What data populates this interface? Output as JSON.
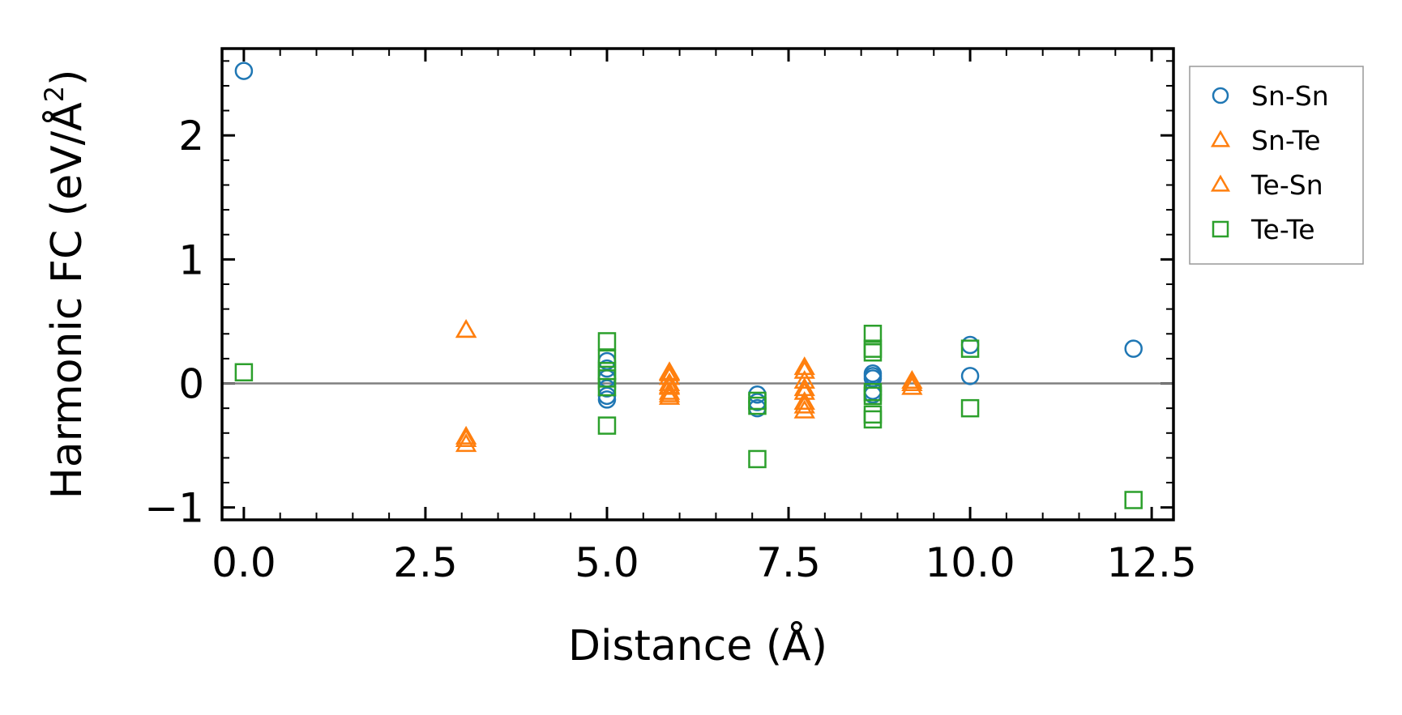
{
  "chart_data": {
    "type": "scatter",
    "title": "",
    "xlabel": "Distance (Å)",
    "ylabel_main": "Harmonic FC (eV/Å",
    "ylabel_sup": "2",
    "ylabel_end": ")",
    "xlim": [
      -0.3,
      12.8
    ],
    "ylim": [
      -1.1,
      2.7
    ],
    "xticks": [
      0.0,
      2.5,
      5.0,
      7.5,
      10.0,
      12.5
    ],
    "xtick_labels": [
      "0.0",
      "2.5",
      "5.0",
      "7.5",
      "10.0",
      "12.5"
    ],
    "xminor_step": 0.5,
    "yticks": [
      -1,
      0,
      1,
      2
    ],
    "ytick_labels": [
      "−1",
      "0",
      "1",
      "2"
    ],
    "yminor_step": 0.2,
    "zero_line": 0,
    "legend_position": "outside-top-right",
    "series": [
      {
        "name": "Sn-Sn",
        "marker": "circle",
        "color": "#1f77b4",
        "points": [
          [
            0.0,
            2.52
          ],
          [
            5.0,
            0.18
          ],
          [
            5.0,
            0.12
          ],
          [
            5.0,
            0.04
          ],
          [
            5.0,
            -0.04
          ],
          [
            5.0,
            -0.1
          ],
          [
            5.0,
            -0.13
          ],
          [
            7.07,
            -0.09
          ],
          [
            7.07,
            -0.15
          ],
          [
            7.07,
            -0.2
          ],
          [
            8.66,
            0.08
          ],
          [
            8.66,
            0.06
          ],
          [
            8.66,
            0.04
          ],
          [
            8.66,
            -0.06
          ],
          [
            8.66,
            -0.09
          ],
          [
            10.0,
            0.31
          ],
          [
            10.0,
            0.06
          ],
          [
            12.25,
            0.28
          ]
        ]
      },
      {
        "name": "Sn-Te",
        "marker": "triangle",
        "color": "#ff7f0e",
        "points": [
          [
            3.06,
            0.43
          ],
          [
            3.06,
            -0.43
          ],
          [
            3.06,
            -0.49
          ],
          [
            5.86,
            0.09
          ],
          [
            5.86,
            0.05
          ],
          [
            5.86,
            0.0
          ],
          [
            5.86,
            -0.03
          ],
          [
            5.86,
            -0.07
          ],
          [
            5.86,
            -0.11
          ],
          [
            7.72,
            0.13
          ],
          [
            7.72,
            0.02
          ],
          [
            7.72,
            -0.07
          ],
          [
            7.72,
            -0.15
          ],
          [
            7.72,
            -0.22
          ],
          [
            9.2,
            0.02
          ],
          [
            9.2,
            -0.03
          ]
        ]
      },
      {
        "name": "Te-Sn",
        "marker": "triangle",
        "color": "#ff7f0e",
        "points": [
          [
            3.06,
            0.43
          ],
          [
            3.06,
            -0.45
          ],
          [
            5.86,
            0.08
          ],
          [
            5.86,
            -0.02
          ],
          [
            5.86,
            -0.09
          ],
          [
            7.72,
            0.1
          ],
          [
            7.72,
            -0.04
          ],
          [
            7.72,
            -0.18
          ],
          [
            9.2,
            0.0
          ]
        ]
      },
      {
        "name": "Te-Te",
        "marker": "square",
        "color": "#2ca02c",
        "points": [
          [
            0.0,
            0.09
          ],
          [
            5.0,
            0.34
          ],
          [
            5.0,
            0.2
          ],
          [
            5.0,
            0.1
          ],
          [
            5.0,
            0.04
          ],
          [
            5.0,
            -0.03
          ],
          [
            5.0,
            -0.34
          ],
          [
            7.07,
            -0.14
          ],
          [
            7.07,
            -0.18
          ],
          [
            7.07,
            -0.61
          ],
          [
            8.66,
            0.4
          ],
          [
            8.66,
            0.28
          ],
          [
            8.66,
            0.25
          ],
          [
            8.66,
            -0.07
          ],
          [
            8.66,
            -0.1
          ],
          [
            8.66,
            -0.25
          ],
          [
            8.66,
            -0.29
          ],
          [
            10.0,
            0.28
          ],
          [
            10.0,
            -0.2
          ],
          [
            12.25,
            -0.94
          ]
        ]
      }
    ]
  }
}
